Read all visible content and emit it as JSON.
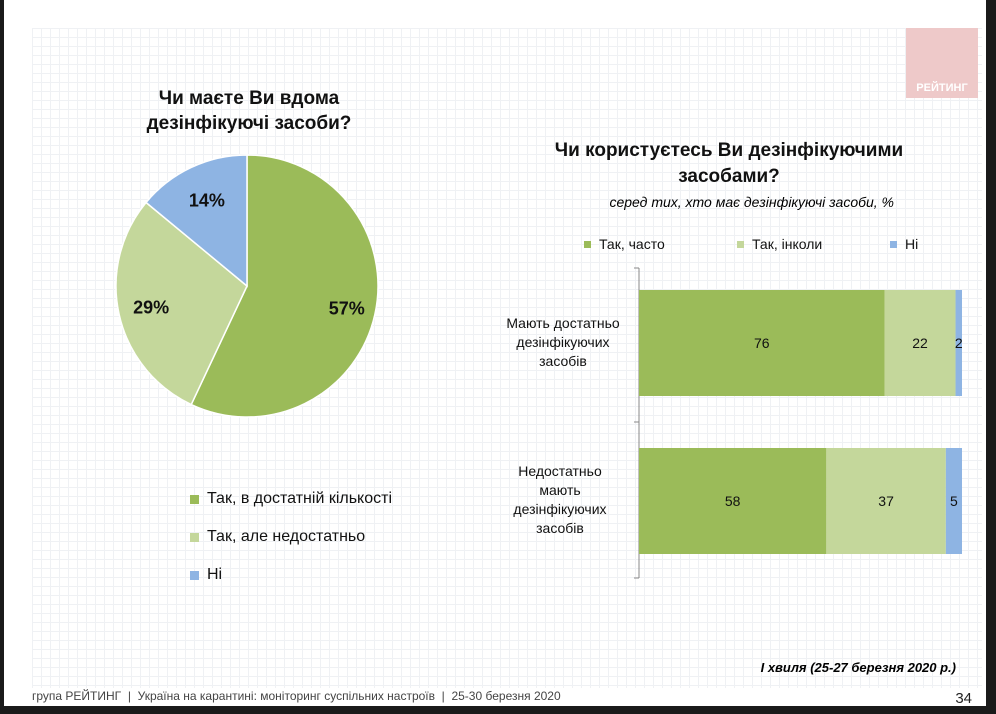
{
  "logo": "РЕЙТИНГ",
  "colors": {
    "often": "#9bbb59",
    "sometimes": "#c4d79b",
    "no": "#8eb4e3"
  },
  "chart_data": [
    {
      "type": "pie",
      "title": "Чи маєте Ви вдома дезінфікуючі засоби?",
      "slices": [
        {
          "name": "Так, в достатній кількості",
          "value": 57,
          "label": "57%"
        },
        {
          "name": "Так, але недостатньо",
          "value": 29,
          "label": "29%"
        },
        {
          "name": "Ні",
          "value": 14,
          "label": "14%"
        }
      ],
      "legend": "bottom"
    },
    {
      "type": "bar",
      "orientation": "horizontal",
      "stacked": true,
      "title": "Чи користуєтесь Ви дезінфікуючими засобами?",
      "subtitle": "серед тих, хто має дезінфікуючі засоби, %",
      "categories": [
        "Мають достатньо дезінфікуючих засобів",
        "Недостатньо мають дезінфікуючих засобів"
      ],
      "series": [
        {
          "name": "Так, часто",
          "values": [
            76,
            58
          ]
        },
        {
          "name": "Так, інколи",
          "values": [
            22,
            37
          ]
        },
        {
          "name": "Ні",
          "values": [
            2,
            5
          ]
        }
      ],
      "xlim": [
        0,
        100
      ],
      "legend": "top"
    }
  ],
  "wave": "І хвиля (25-27 березня 2020 р.)",
  "footer": "група РЕЙТИНГ  |  Україна на карантині: моніторинг суспільних настроїв  |  25-30 березня 2020",
  "page_number": "34"
}
